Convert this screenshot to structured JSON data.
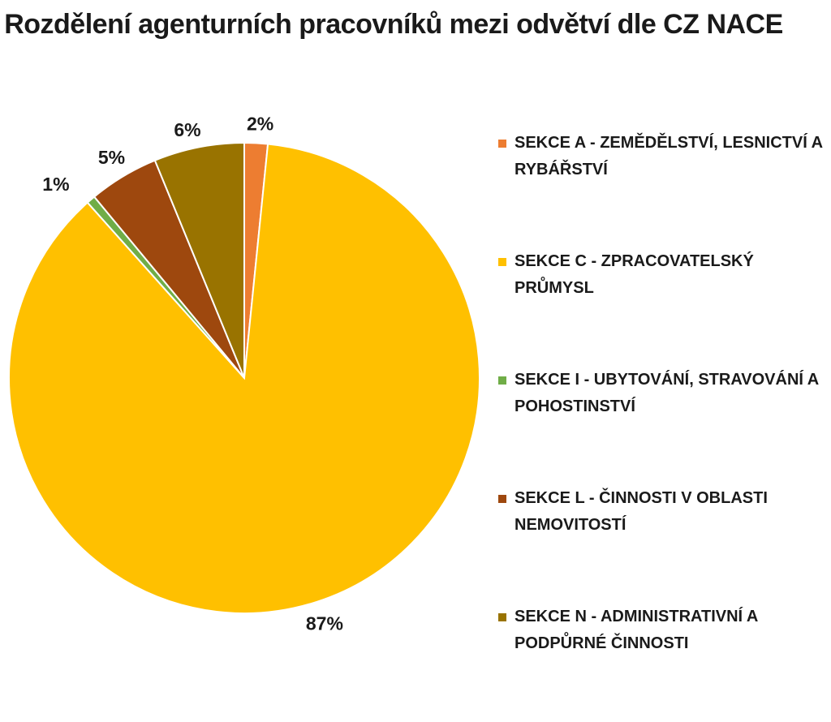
{
  "chart_data": {
    "type": "pie",
    "title": "Rozdělení agenturních pracovníků mezi odvětví dle CZ NACE",
    "legend_position": "right",
    "slices": [
      {
        "name": "SEKCE A - ZEMĚDĚLSTVÍ, LESNICTVÍ A RYBÁŘSTVÍ",
        "value": 1.6,
        "label": "2%",
        "color": "#ED7D31"
      },
      {
        "name": "SEKCE C - ZPRACOVATELSKÝ PRŮMYSL",
        "value": 86.8,
        "label": "87%",
        "color": "#FFC000"
      },
      {
        "name": "SEKCE I - UBYTOVÁNÍ, STRAVOVÁNÍ A POHOSTINSTVÍ",
        "value": 0.6,
        "label": "1%",
        "color": "#70AD47"
      },
      {
        "name": "SEKCE L - ČINNOSTI V OBLASTI NEMOVITOSTÍ",
        "value": 4.8,
        "label": "5%",
        "color": "#9E480E"
      },
      {
        "name": "SEKCE N - ADMINISTRATIVNÍ A PODPŮRNÉ ČINNOSTI",
        "value": 6.2,
        "label": "6%",
        "color": "#997300"
      }
    ]
  }
}
